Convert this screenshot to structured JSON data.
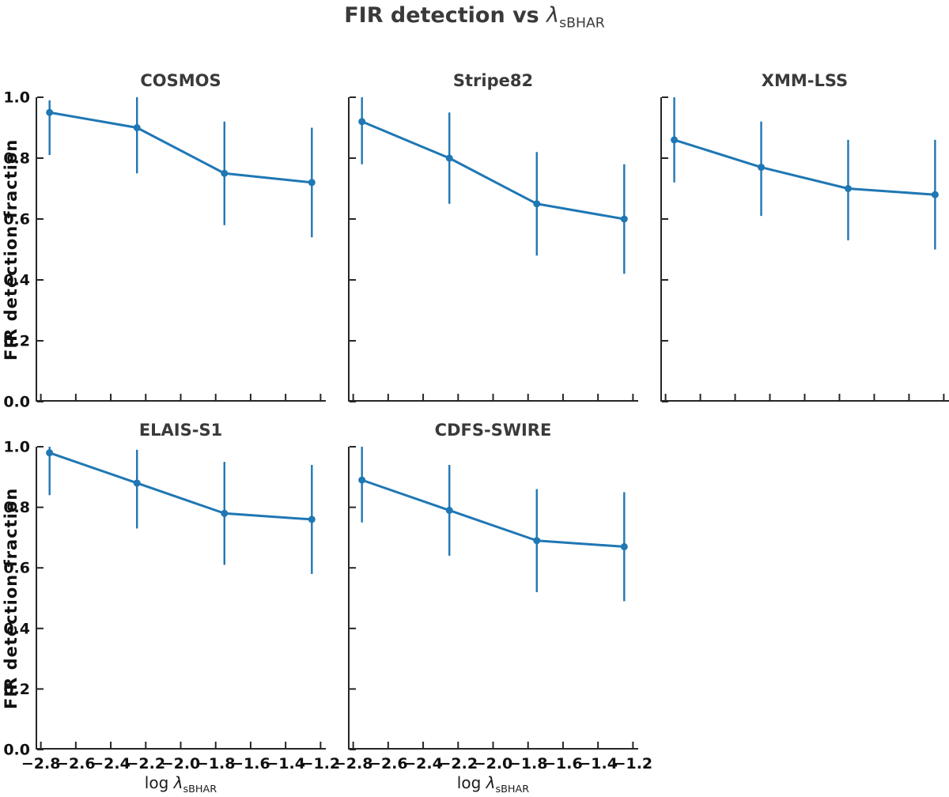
{
  "figure": {
    "title": {
      "prefix": "FIR detection vs ",
      "lambda": "λ",
      "subscript": "sBHAR"
    },
    "ylabel": "FIR detection fraction",
    "xlabel": {
      "prefix": "log ",
      "lambda": "λ",
      "subscript": "sBHAR"
    }
  },
  "axes": {
    "xlim": [
      -2.83,
      -1.17
    ],
    "ylim": [
      0.0,
      1.0
    ],
    "xtick_values": [
      -2.8,
      -2.6,
      -2.4,
      -2.2,
      -2.0,
      -1.8,
      -1.6,
      -1.4,
      -1.2
    ],
    "xtick_labels": [
      "−2.8",
      "−2.6",
      "−2.4",
      "−2.2",
      "−2.0",
      "−1.8",
      "−1.6",
      "−1.4",
      "−1.2"
    ],
    "ytick_values": [
      0.0,
      0.2,
      0.4,
      0.6,
      0.8,
      1.0
    ],
    "ytick_labels": [
      "0.0",
      "0.2",
      "0.4",
      "0.6",
      "0.8",
      "1.0"
    ],
    "grid": false,
    "legend": "none"
  },
  "chart_data": [
    {
      "type": "line",
      "title": "COSMOS",
      "x": [
        -2.75,
        -2.25,
        -1.75,
        -1.25
      ],
      "y": [
        0.95,
        0.9,
        0.75,
        0.72
      ],
      "err_lo": [
        0.81,
        0.75,
        0.58,
        0.54
      ],
      "err_hi": [
        0.99,
        1.0,
        0.92,
        0.9
      ]
    },
    {
      "type": "line",
      "title": "Stripe82",
      "x": [
        -2.75,
        -2.25,
        -1.75,
        -1.25
      ],
      "y": [
        0.92,
        0.8,
        0.65,
        0.6
      ],
      "err_lo": [
        0.78,
        0.65,
        0.48,
        0.42
      ],
      "err_hi": [
        1.0,
        0.95,
        0.82,
        0.78
      ]
    },
    {
      "type": "line",
      "title": "XMM-LSS",
      "x": [
        -2.75,
        -2.25,
        -1.75,
        -1.25
      ],
      "y": [
        0.86,
        0.77,
        0.7,
        0.68
      ],
      "err_lo": [
        0.72,
        0.61,
        0.53,
        0.5
      ],
      "err_hi": [
        1.0,
        0.92,
        0.86,
        0.86
      ]
    },
    {
      "type": "line",
      "title": "ELAIS-S1",
      "x": [
        -2.75,
        -2.25,
        -1.75,
        -1.25
      ],
      "y": [
        0.98,
        0.88,
        0.78,
        0.76
      ],
      "err_lo": [
        0.84,
        0.73,
        0.61,
        0.58
      ],
      "err_hi": [
        1.0,
        0.99,
        0.95,
        0.94
      ]
    },
    {
      "type": "line",
      "title": "CDFS-SWIRE",
      "x": [
        -2.75,
        -2.25,
        -1.75,
        -1.25
      ],
      "y": [
        0.89,
        0.79,
        0.69,
        0.67
      ],
      "err_lo": [
        0.75,
        0.64,
        0.52,
        0.49
      ],
      "err_hi": [
        1.0,
        0.94,
        0.86,
        0.85
      ]
    }
  ],
  "colors": {
    "line": "#1f77b4",
    "spine": "#262626",
    "tick_text": "#111111",
    "title_text": "#3a3a3a"
  }
}
